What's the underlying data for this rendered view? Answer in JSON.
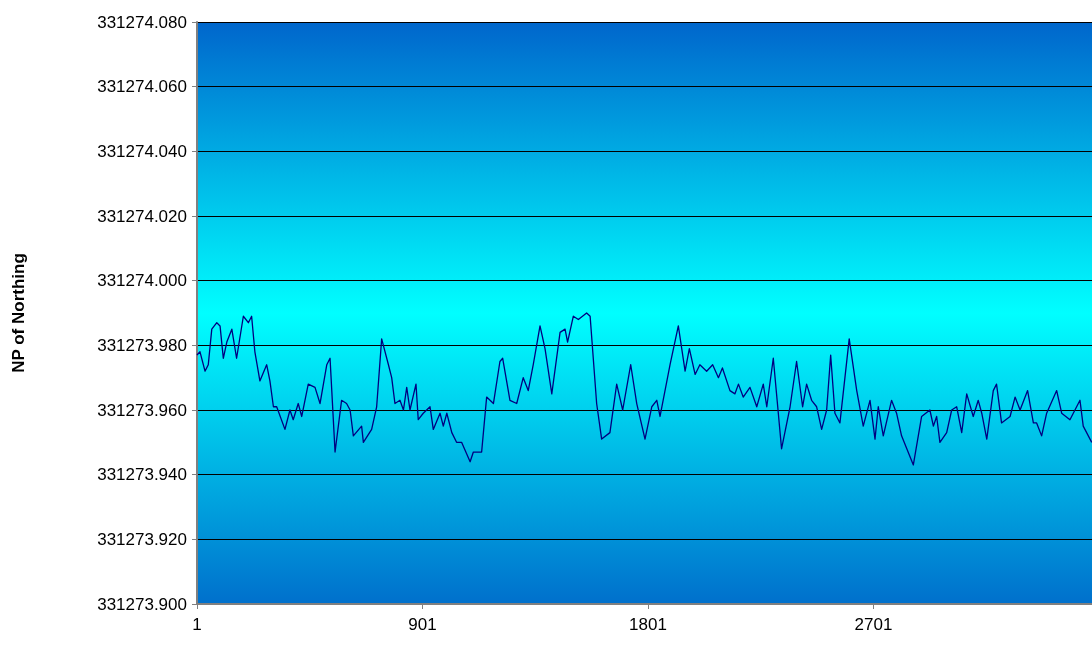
{
  "chart_data": {
    "type": "line",
    "ylabel": "NP of Northing",
    "color": "#000080",
    "marker": "none",
    "grid": "y",
    "xlim": [
      1,
      3573
    ],
    "xticks": [
      1,
      901,
      1801,
      2701
    ],
    "ylim": [
      331273.9,
      331274.08
    ],
    "yticks": [
      {
        "value": 331273.9,
        "label": "331273.900"
      },
      {
        "value": 331273.92,
        "label": "331273.920"
      },
      {
        "value": 331273.94,
        "label": "331273.940"
      },
      {
        "value": 331273.96,
        "label": "331273.960"
      },
      {
        "value": 331273.98,
        "label": "331273.980"
      },
      {
        "value": 331274.0,
        "label": "331274.000"
      },
      {
        "value": 331274.02,
        "label": "331274.020"
      },
      {
        "value": 331274.04,
        "label": "331274.040"
      },
      {
        "value": 331274.06,
        "label": "331274.060"
      },
      {
        "value": 331274.08,
        "label": "331274.080"
      }
    ],
    "x": [
      1,
      13,
      33,
      46,
      60,
      80,
      93,
      106,
      120,
      140,
      159,
      186,
      206,
      219,
      232,
      252,
      279,
      292,
      306,
      319,
      352,
      372,
      385,
      405,
      419,
      445,
      472,
      492,
      519,
      532,
      552,
      578,
      598,
      612,
      625,
      658,
      665,
      698,
      718,
      738,
      765,
      778,
      791,
      811,
      825,
      838,
      851,
      875,
      884,
      904,
      931,
      944,
      971,
      984,
      998,
      1018,
      1037,
      1057,
      1091,
      1104,
      1137,
      1157,
      1184,
      1210,
      1221,
      1250,
      1277,
      1303,
      1323,
      1343,
      1370,
      1390,
      1417,
      1450,
      1470,
      1480,
      1503,
      1523,
      1556,
      1570,
      1596,
      1616,
      1649,
      1676,
      1700,
      1732,
      1756,
      1789,
      1816,
      1836,
      1849,
      1889,
      1922,
      1949,
      1966,
      1989,
      2008,
      2035,
      2059,
      2082,
      2098,
      2128,
      2148,
      2162,
      2181,
      2208,
      2235,
      2261,
      2275,
      2301,
      2334,
      2368,
      2394,
      2418,
      2434,
      2454,
      2474,
      2494,
      2514,
      2530,
      2547,
      2567,
      2604,
      2634,
      2660,
      2687,
      2707,
      2720,
      2740,
      2773,
      2793,
      2813,
      2860,
      2893,
      2926,
      2940,
      2953,
      2966,
      2993,
      3013,
      3033,
      3053,
      3073,
      3099,
      3119,
      3133,
      3153,
      3179,
      3192,
      3212,
      3246,
      3266,
      3286,
      3316,
      3339,
      3352,
      3372,
      3392,
      3432,
      3452,
      3485,
      3525,
      3538,
      3572
    ],
    "values": [
      331273.977,
      331273.978,
      331273.972,
      331273.974,
      331273.985,
      331273.987,
      331273.986,
      331273.976,
      331273.981,
      331273.985,
      331273.976,
      331273.989,
      331273.987,
      331273.989,
      331273.978,
      331273.969,
      331273.974,
      331273.969,
      331273.961,
      331273.961,
      331273.954,
      331273.96,
      331273.957,
      331273.962,
      331273.958,
      331273.968,
      331273.967,
      331273.962,
      331273.974,
      331273.976,
      331273.947,
      331273.963,
      331273.962,
      331273.96,
      331273.952,
      331273.955,
      331273.95,
      331273.954,
      331273.961,
      331273.982,
      331273.974,
      331273.97,
      331273.962,
      331273.963,
      331273.96,
      331273.967,
      331273.96,
      331273.968,
      331273.957,
      331273.959,
      331273.961,
      331273.954,
      331273.959,
      331273.955,
      331273.959,
      331273.953,
      331273.95,
      331273.95,
      331273.944,
      331273.947,
      331273.947,
      331273.964,
      331273.962,
      331273.975,
      331273.976,
      331273.963,
      331273.962,
      331273.97,
      331273.966,
      331273.974,
      331273.986,
      331273.979,
      331273.965,
      331273.984,
      331273.985,
      331273.981,
      331273.989,
      331273.988,
      331273.99,
      331273.989,
      331273.962,
      331273.951,
      331273.953,
      331273.968,
      331273.96,
      331273.974,
      331273.962,
      331273.951,
      331273.961,
      331273.963,
      331273.958,
      331273.974,
      331273.986,
      331273.972,
      331273.979,
      331273.971,
      331273.974,
      331273.972,
      331273.974,
      331273.97,
      331273.973,
      331273.966,
      331273.965,
      331273.968,
      331273.964,
      331273.967,
      331273.961,
      331273.968,
      331273.961,
      331273.976,
      331273.948,
      331273.961,
      331273.975,
      331273.961,
      331273.968,
      331273.963,
      331273.961,
      331273.954,
      331273.96,
      331273.977,
      331273.959,
      331273.956,
      331273.982,
      331273.966,
      331273.955,
      331273.963,
      331273.951,
      331273.961,
      331273.952,
      331273.963,
      331273.959,
      331273.952,
      331273.943,
      331273.958,
      331273.96,
      331273.955,
      331273.958,
      331273.95,
      331273.953,
      331273.96,
      331273.961,
      331273.953,
      331273.965,
      331273.958,
      331273.963,
      331273.959,
      331273.951,
      331273.966,
      331273.968,
      331273.956,
      331273.958,
      331273.964,
      331273.96,
      331273.966,
      331273.956,
      331273.956,
      331273.952,
      331273.959,
      331273.966,
      331273.959,
      331273.957,
      331273.963,
      331273.955,
      331273.95
    ]
  }
}
